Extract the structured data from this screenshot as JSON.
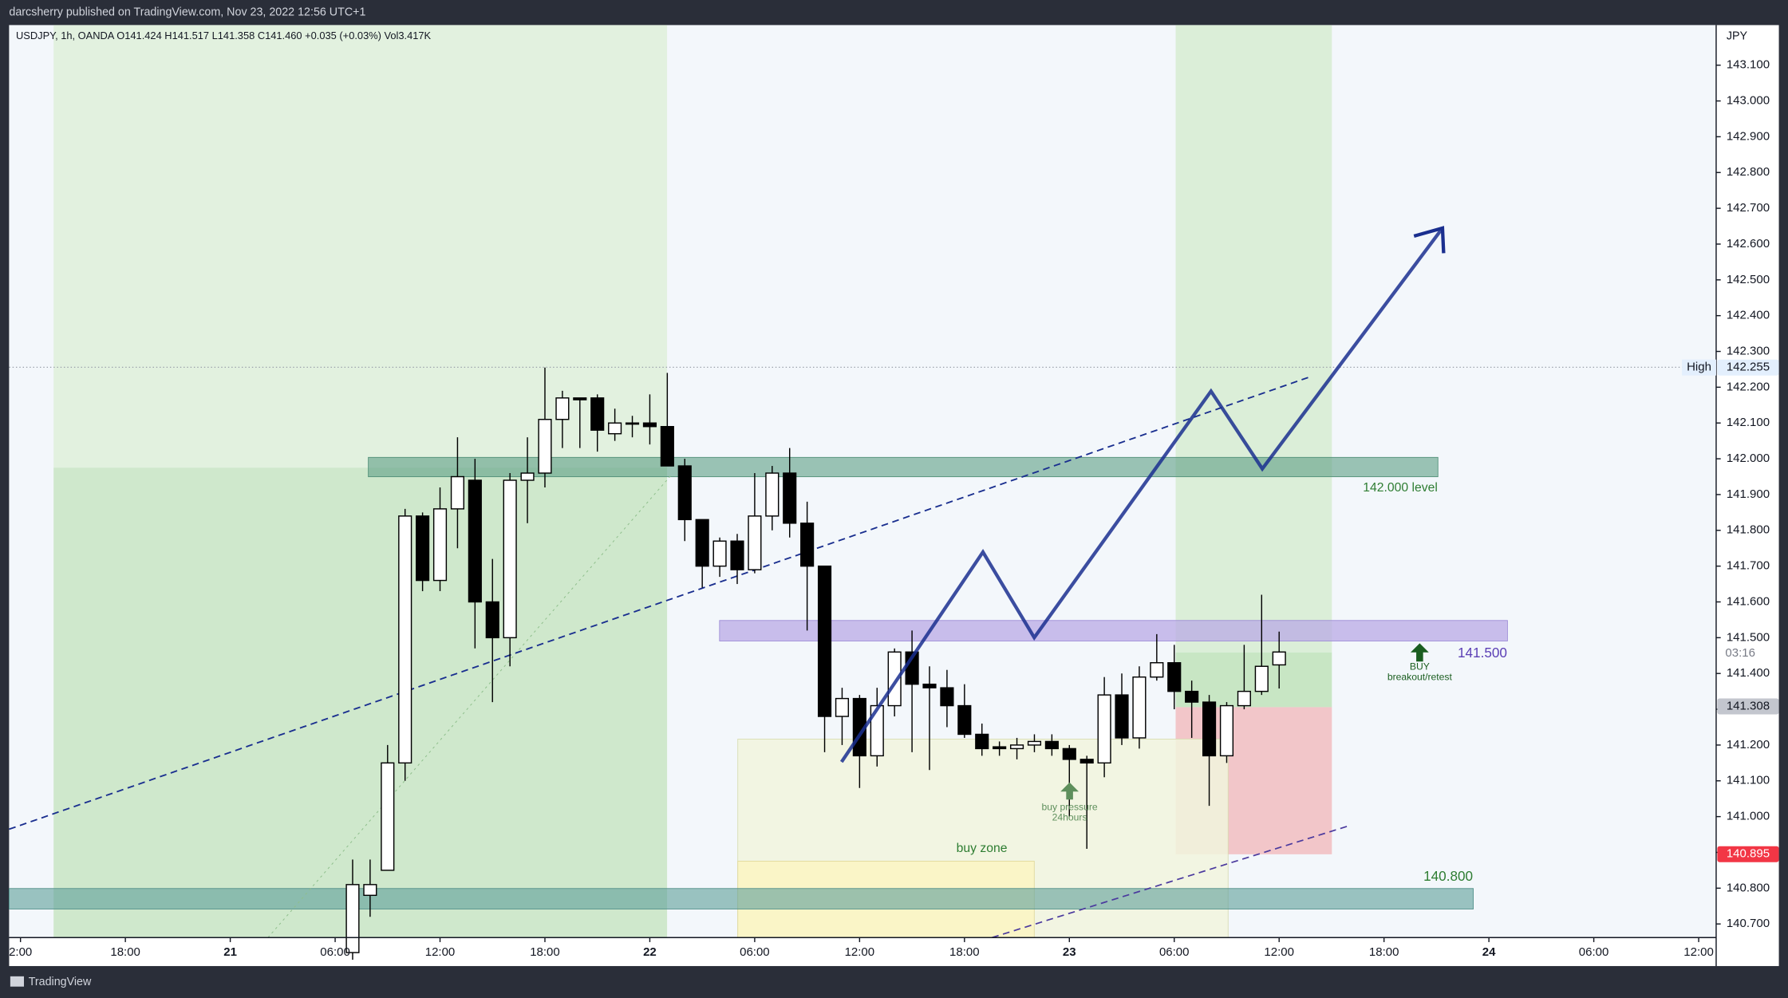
{
  "header": {
    "publisher": "darcsherry published on TradingView.com, Nov 23, 2022 12:56 UTC+1",
    "footer": "TradingView"
  },
  "chart_data": {
    "type": "candlestick",
    "legend_text": "USDJPY, 1h, OANDA  O141.424 H141.517 L141.358 C141.460 +0.035 (+0.03%)  Vol3.417K",
    "y_axis_label": "JPY",
    "x": [
      31,
      32,
      33,
      34,
      35,
      36,
      37,
      38,
      39,
      40,
      41,
      42,
      43,
      44,
      45,
      46,
      47,
      48,
      49,
      50,
      51,
      52,
      53,
      54,
      55,
      56,
      57,
      58,
      59,
      60,
      61,
      62,
      63,
      64,
      65,
      66,
      67,
      68,
      69,
      70,
      71,
      72,
      73,
      74,
      75,
      76,
      77,
      78,
      79,
      80,
      81,
      82,
      83,
      84
    ],
    "open": [
      140.62,
      140.78,
      140.85,
      141.15,
      141.84,
      141.66,
      141.86,
      141.94,
      141.6,
      141.5,
      141.94,
      141.96,
      142.11,
      142.17,
      142.17,
      142.07,
      142.1,
      142.1,
      142.09,
      141.98,
      141.83,
      141.7,
      141.77,
      141.69,
      141.84,
      141.96,
      141.82,
      141.7,
      141.28,
      141.33,
      141.17,
      141.31,
      141.46,
      141.37,
      141.36,
      141.31,
      141.23,
      141.195,
      141.19,
      141.2,
      141.21,
      141.19,
      141.16,
      141.15,
      141.34,
      141.22,
      141.39,
      141.43,
      141.35,
      141.32,
      141.17,
      141.31,
      141.35,
      141.424
    ],
    "high": [
      140.88,
      140.88,
      141.2,
      141.86,
      141.85,
      141.92,
      142.06,
      142.0,
      141.72,
      141.96,
      142.06,
      142.255,
      142.19,
      142.17,
      142.18,
      142.14,
      142.12,
      142.18,
      142.24,
      142.0,
      141.83,
      141.78,
      141.79,
      141.96,
      141.98,
      142.03,
      141.88,
      141.7,
      141.36,
      141.34,
      141.36,
      141.47,
      141.52,
      141.42,
      141.41,
      141.37,
      141.26,
      141.21,
      141.22,
      141.23,
      141.23,
      141.2,
      141.17,
      141.39,
      141.4,
      141.42,
      141.51,
      141.48,
      141.38,
      141.34,
      141.32,
      141.48,
      141.62,
      141.517
    ],
    "low": [
      140.6,
      140.72,
      140.85,
      141.1,
      141.63,
      141.63,
      141.75,
      141.47,
      141.32,
      141.42,
      141.82,
      141.92,
      142.03,
      142.03,
      142.02,
      142.05,
      142.06,
      142.04,
      141.98,
      141.77,
      141.64,
      141.67,
      141.65,
      141.68,
      141.8,
      141.78,
      141.52,
      141.18,
      141.2,
      141.08,
      141.14,
      141.28,
      141.18,
      141.13,
      141.25,
      141.22,
      141.17,
      141.17,
      141.16,
      141.18,
      141.17,
      141.0,
      140.91,
      141.11,
      141.2,
      141.19,
      141.38,
      141.3,
      141.22,
      141.03,
      141.15,
      141.3,
      141.34,
      141.358
    ],
    "close": [
      140.81,
      140.81,
      141.15,
      141.84,
      141.66,
      141.86,
      141.95,
      141.6,
      141.5,
      141.94,
      141.96,
      142.11,
      142.17,
      142.165,
      142.08,
      142.1,
      142.1,
      142.09,
      141.98,
      141.83,
      141.7,
      141.77,
      141.69,
      141.84,
      141.96,
      141.82,
      141.7,
      141.28,
      141.33,
      141.17,
      141.31,
      141.46,
      141.37,
      141.36,
      141.31,
      141.23,
      141.19,
      141.19,
      141.2,
      141.21,
      141.19,
      141.16,
      141.15,
      141.34,
      141.22,
      141.39,
      141.43,
      141.35,
      141.32,
      141.17,
      141.31,
      141.35,
      141.42,
      141.46
    ],
    "up_color": "#ffffff",
    "down_color": "#000000",
    "xlim": [
      11.35,
      109
    ],
    "xticks": [
      {
        "value": 12,
        "label": "2:00"
      },
      {
        "value": 18,
        "label": "18:00"
      },
      {
        "value": 24,
        "label": "21"
      },
      {
        "value": 30,
        "label": "06:00"
      },
      {
        "value": 36,
        "label": "12:00"
      },
      {
        "value": 42,
        "label": "18:00"
      },
      {
        "value": 48,
        "label": "22"
      },
      {
        "value": 54,
        "label": "06:00"
      },
      {
        "value": 60,
        "label": "12:00"
      },
      {
        "value": 66,
        "label": "18:00"
      },
      {
        "value": 72,
        "label": "23"
      },
      {
        "value": 78,
        "label": "06:00"
      },
      {
        "value": 84,
        "label": "12:00"
      },
      {
        "value": 90,
        "label": "18:00"
      },
      {
        "value": 96,
        "label": "24"
      },
      {
        "value": 102,
        "label": "06:00"
      },
      {
        "value": 108,
        "label": "12:00"
      }
    ],
    "ylim": [
      140.662,
      143.212
    ],
    "yticks": [
      {
        "value": 140.7,
        "label": "140.700"
      },
      {
        "value": 140.8,
        "label": "140.800"
      },
      {
        "value": 140.9,
        "label": "140.900"
      },
      {
        "value": 141.0,
        "label": "141.000"
      },
      {
        "value": 141.1,
        "label": "141.100"
      },
      {
        "value": 141.2,
        "label": "141.200"
      },
      {
        "value": 141.3,
        "label": "141.300"
      },
      {
        "value": 141.4,
        "label": "141.400"
      },
      {
        "value": 141.5,
        "label": "141.500"
      },
      {
        "value": 141.6,
        "label": "141.600"
      },
      {
        "value": 141.7,
        "label": "141.700"
      },
      {
        "value": 141.8,
        "label": "141.800"
      },
      {
        "value": 141.9,
        "label": "141.900"
      },
      {
        "value": 142.0,
        "label": "142.000"
      },
      {
        "value": 142.1,
        "label": "142.100"
      },
      {
        "value": 142.2,
        "label": "142.200"
      },
      {
        "value": 142.3,
        "label": "142.300"
      },
      {
        "value": 142.4,
        "label": "142.400"
      },
      {
        "value": 142.5,
        "label": "142.500"
      },
      {
        "value": 142.6,
        "label": "142.600"
      },
      {
        "value": 142.7,
        "label": "142.700"
      },
      {
        "value": 142.8,
        "label": "142.800"
      },
      {
        "value": 142.9,
        "label": "142.900"
      },
      {
        "value": 143.0,
        "label": "143.000"
      },
      {
        "value": 143.1,
        "label": "143.100"
      }
    ],
    "price_tags": [
      {
        "label": "High",
        "value": 142.255,
        "color": "#e3effd",
        "text_color": "#131722"
      },
      {
        "value": 141.308,
        "color": "#c3c6ce",
        "text_color": "#131722"
      },
      {
        "value": 140.895,
        "color": "#f23645",
        "text_color": "#ffffff"
      }
    ],
    "countdown": "03:16",
    "annotations": {
      "level_142": "142.000 level",
      "level_1415": "141.500",
      "level_1408": "140.800",
      "buy_zone": "buy zone",
      "buy_pressure_1": "buy pressure",
      "buy_pressure_2": "24hours",
      "buy_1": "BUY",
      "buy_2": "breakout/retest"
    }
  }
}
